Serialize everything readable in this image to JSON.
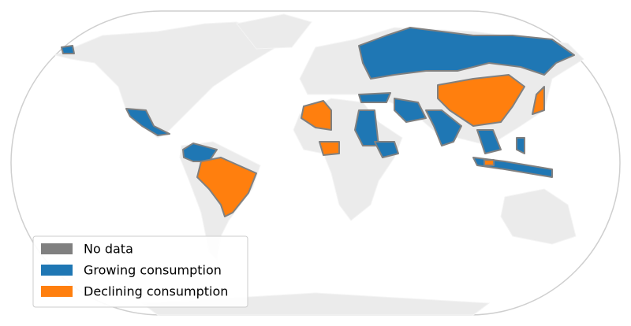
{
  "legend": {
    "items": [
      {
        "name": "No data",
        "color": "#808080"
      },
      {
        "name": "Growing consumption",
        "color": "#1f77b4"
      },
      {
        "name": "Declining consumption",
        "color": "#ff7f0e"
      }
    ]
  }
}
